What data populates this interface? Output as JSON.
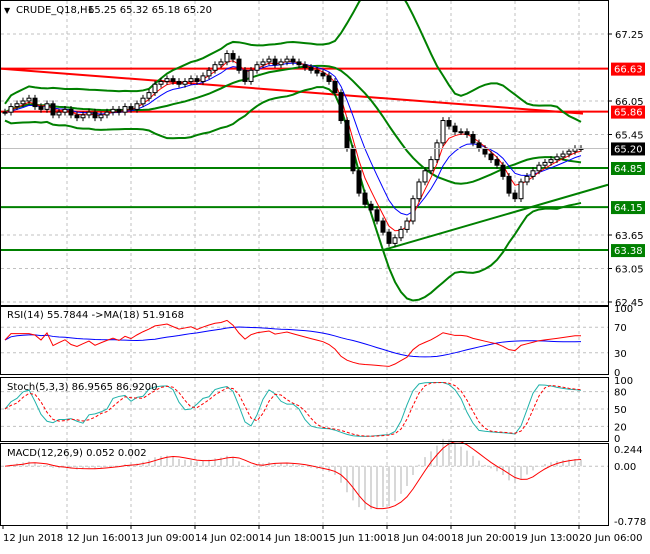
{
  "header": {
    "arrow": "▼",
    "symbol": "CRUDE_Q18,H1",
    "ohlc": "65.25 65.32 65.18 65.20"
  },
  "rsi_label": "RSI(14) 55.7844  ->MA(18) 51.9168",
  "stoch_label": "Stoch(5,3,3) 86.9565 86.9200",
  "macd_label": "MACD(12,26,9) 0.052 0.002",
  "colors": {
    "bull": "#000000",
    "bear": "#000000",
    "green": "#008000",
    "red": "#ff0000",
    "blue": "#0000ff",
    "stoch": "#20b2aa"
  },
  "chart_data": {
    "type": "candlestick",
    "title": "CRUDE_Q18,H1",
    "price_ticks": [
      "67.25",
      "66.05",
      "65.45",
      "63.65",
      "63.05",
      "62.45"
    ],
    "ylim": [
      62.45,
      67.75
    ],
    "closes": [
      65.85,
      65.95,
      66.0,
      66.05,
      66.1,
      65.95,
      65.9,
      66.0,
      65.8,
      65.85,
      65.9,
      65.8,
      65.75,
      65.8,
      65.85,
      65.75,
      65.8,
      65.85,
      65.9,
      65.85,
      65.95,
      65.9,
      66.0,
      66.1,
      66.2,
      66.35,
      66.4,
      66.45,
      66.4,
      66.35,
      66.4,
      66.45,
      66.4,
      66.5,
      66.6,
      66.7,
      66.75,
      66.9,
      66.8,
      66.6,
      66.4,
      66.6,
      66.7,
      66.75,
      66.8,
      66.7,
      66.75,
      66.8,
      66.75,
      66.7,
      66.65,
      66.6,
      66.55,
      66.5,
      66.4,
      66.2,
      65.7,
      65.2,
      64.8,
      64.4,
      64.2,
      64.1,
      63.9,
      63.7,
      63.5,
      63.6,
      63.75,
      63.9,
      64.3,
      64.6,
      64.8,
      65.0,
      65.3,
      65.7,
      65.6,
      65.5,
      65.5,
      65.45,
      65.3,
      65.2,
      65.1,
      65.0,
      64.9,
      64.7,
      64.4,
      64.3,
      64.6,
      64.7,
      64.8,
      64.9,
      64.95,
      65.0,
      65.05,
      65.1,
      65.15,
      65.2,
      65.2
    ],
    "levels": [
      {
        "label": "66.63",
        "value": 66.63,
        "color": "red"
      },
      {
        "label": "65.86",
        "value": 65.86,
        "color": "red"
      },
      {
        "label": "64.85",
        "value": 64.85,
        "color": "green"
      },
      {
        "label": "64.15",
        "value": 64.15,
        "color": "green"
      },
      {
        "label": "63.38",
        "value": 63.38,
        "color": "green"
      }
    ],
    "current_price": "65.20",
    "long_ma": {
      "start": 66.63,
      "end": 65.86
    },
    "trendline": {
      "start_bar": 63,
      "start": 63.38,
      "end": 64.55
    },
    "rsi_ticks": [
      "100",
      "70",
      "30",
      "0"
    ],
    "stoch_ticks": [
      "100",
      "80",
      "50",
      "20",
      "0"
    ],
    "macd_ticks": [
      "0.244",
      "0.00",
      "-0.778"
    ],
    "macd_range": [
      -0.778,
      0.244
    ],
    "time_labels": [
      "12 Jun 2018",
      "12 Jun 16:00",
      "13 Jun 09:00",
      "14 Jun 02:00",
      "14 Jun 18:00",
      "15 Jun 11:00",
      "18 Jun 04:00",
      "18 Jun 20:00",
      "19 Jun 13:00",
      "20 Jun 06:00"
    ]
  }
}
